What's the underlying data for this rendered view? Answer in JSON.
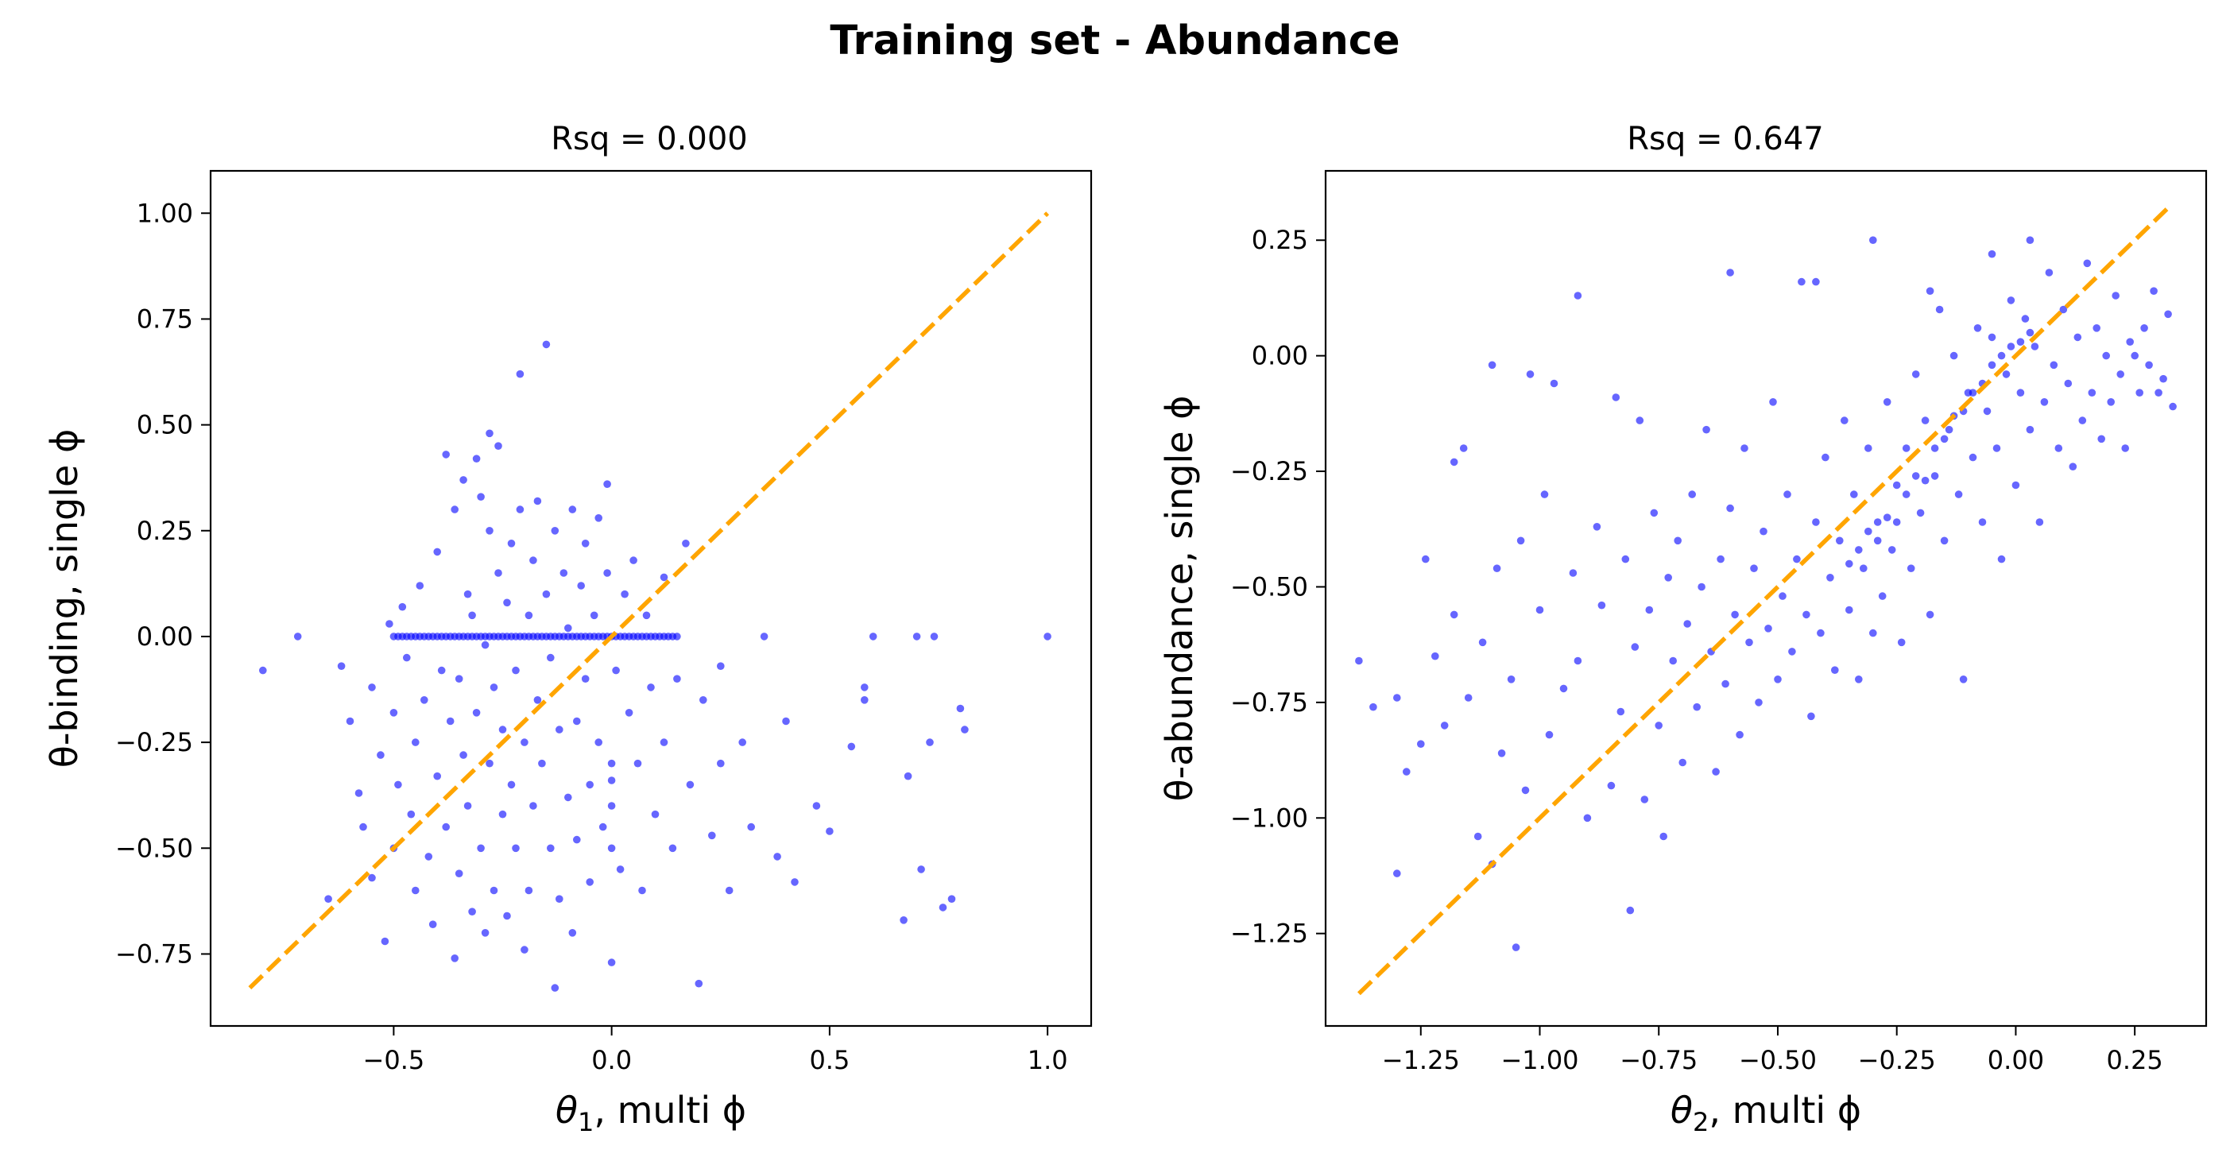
{
  "figure": {
    "title": "Training set - Abundance"
  },
  "colors": {
    "points": "#0000ff",
    "diagonal": "#ffa500",
    "axes": "#000000"
  },
  "chart_data": [
    {
      "type": "scatter",
      "title": "Rsq = 0.000",
      "xlabel_prefix": "θ",
      "xlabel_sub": "1",
      "xlabel_suffix": ", multi ϕ",
      "ylabel": "θ-binding, single ϕ",
      "xlim": [
        -0.92,
        1.1
      ],
      "ylim": [
        -0.92,
        1.1
      ],
      "xticks": [
        -0.5,
        0.0,
        0.5,
        1.0
      ],
      "xtick_labels": [
        "−0.5",
        "0.0",
        "0.5",
        "1.0"
      ],
      "yticks": [
        -0.75,
        -0.5,
        -0.25,
        0.0,
        0.25,
        0.5,
        0.75,
        1.0
      ],
      "ytick_labels": [
        "−0.75",
        "−0.50",
        "−0.25",
        "0.00",
        "0.25",
        "0.50",
        "0.75",
        "1.00"
      ],
      "diagonal": [
        [
          -0.83,
          -0.83
        ],
        [
          1.0,
          1.0
        ]
      ],
      "grid": false,
      "points": [
        [
          -0.8,
          -0.08
        ],
        [
          -0.72,
          0.0
        ],
        [
          -0.65,
          -0.62
        ],
        [
          -0.62,
          -0.07
        ],
        [
          -0.6,
          -0.2
        ],
        [
          -0.58,
          -0.37
        ],
        [
          -0.57,
          -0.45
        ],
        [
          -0.55,
          -0.12
        ],
        [
          -0.55,
          -0.57
        ],
        [
          -0.53,
          -0.28
        ],
        [
          -0.52,
          -0.72
        ],
        [
          -0.51,
          0.03
        ],
        [
          -0.5,
          -0.5
        ],
        [
          -0.5,
          -0.18
        ],
        [
          -0.49,
          -0.35
        ],
        [
          -0.48,
          0.07
        ],
        [
          -0.47,
          -0.05
        ],
        [
          -0.46,
          -0.42
        ],
        [
          -0.45,
          -0.6
        ],
        [
          -0.45,
          -0.25
        ],
        [
          -0.44,
          0.12
        ],
        [
          -0.43,
          -0.15
        ],
        [
          -0.42,
          -0.52
        ],
        [
          -0.41,
          -0.68
        ],
        [
          -0.4,
          -0.33
        ],
        [
          -0.4,
          0.2
        ],
        [
          -0.39,
          -0.08
        ],
        [
          -0.38,
          -0.45
        ],
        [
          -0.38,
          0.43
        ],
        [
          -0.37,
          -0.2
        ],
        [
          -0.36,
          -0.76
        ],
        [
          -0.36,
          0.3
        ],
        [
          -0.35,
          -0.1
        ],
        [
          -0.35,
          -0.56
        ],
        [
          -0.34,
          0.37
        ],
        [
          -0.34,
          -0.28
        ],
        [
          -0.33,
          0.1
        ],
        [
          -0.33,
          -0.4
        ],
        [
          -0.32,
          -0.65
        ],
        [
          -0.32,
          0.05
        ],
        [
          -0.31,
          -0.18
        ],
        [
          -0.31,
          0.42
        ],
        [
          -0.3,
          -0.5
        ],
        [
          -0.3,
          0.33
        ],
        [
          -0.29,
          -0.02
        ],
        [
          -0.29,
          -0.7
        ],
        [
          -0.28,
          0.25
        ],
        [
          -0.28,
          -0.3
        ],
        [
          -0.28,
          0.48
        ],
        [
          -0.27,
          -0.12
        ],
        [
          -0.27,
          -0.6
        ],
        [
          -0.26,
          0.15
        ],
        [
          -0.26,
          0.45
        ],
        [
          -0.25,
          -0.42
        ],
        [
          -0.25,
          -0.22
        ],
        [
          -0.24,
          0.08
        ],
        [
          -0.24,
          -0.66
        ],
        [
          -0.23,
          -0.35
        ],
        [
          -0.23,
          0.22
        ],
        [
          -0.22,
          -0.08
        ],
        [
          -0.22,
          -0.5
        ],
        [
          -0.21,
          0.3
        ],
        [
          -0.21,
          0.62
        ],
        [
          -0.2,
          -0.25
        ],
        [
          -0.2,
          -0.74
        ],
        [
          -0.19,
          0.05
        ],
        [
          -0.19,
          -0.6
        ],
        [
          -0.18,
          0.18
        ],
        [
          -0.18,
          -0.4
        ],
        [
          -0.17,
          0.32
        ],
        [
          -0.17,
          -0.15
        ],
        [
          -0.16,
          -0.3
        ],
        [
          -0.15,
          0.1
        ],
        [
          -0.15,
          0.69
        ],
        [
          -0.14,
          -0.5
        ],
        [
          -0.14,
          -0.05
        ],
        [
          -0.13,
          0.25
        ],
        [
          -0.13,
          -0.83
        ],
        [
          -0.12,
          -0.22
        ],
        [
          -0.12,
          -0.62
        ],
        [
          -0.11,
          0.15
        ],
        [
          -0.1,
          -0.38
        ],
        [
          -0.1,
          0.02
        ],
        [
          -0.09,
          -0.7
        ],
        [
          -0.09,
          0.3
        ],
        [
          -0.08,
          -0.2
        ],
        [
          -0.08,
          -0.48
        ],
        [
          -0.07,
          0.12
        ],
        [
          -0.06,
          -0.1
        ],
        [
          -0.06,
          0.22
        ],
        [
          -0.05,
          -0.35
        ],
        [
          -0.05,
          -0.58
        ],
        [
          -0.04,
          0.05
        ],
        [
          -0.03,
          0.28
        ],
        [
          -0.03,
          -0.25
        ],
        [
          -0.02,
          -0.45
        ],
        [
          -0.01,
          0.36
        ],
        [
          -0.01,
          0.15
        ],
        [
          0.0,
          -0.3
        ],
        [
          0.0,
          -0.34
        ],
        [
          0.0,
          -0.4
        ],
        [
          0.0,
          -0.5
        ],
        [
          0.0,
          -0.77
        ],
        [
          0.01,
          -0.08
        ],
        [
          0.02,
          -0.55
        ],
        [
          0.03,
          0.1
        ],
        [
          0.04,
          -0.18
        ],
        [
          0.05,
          0.18
        ],
        [
          0.06,
          -0.3
        ],
        [
          0.07,
          -0.6
        ],
        [
          0.08,
          0.05
        ],
        [
          0.09,
          -0.12
        ],
        [
          0.1,
          -0.42
        ],
        [
          0.12,
          0.14
        ],
        [
          0.12,
          -0.25
        ],
        [
          0.14,
          -0.5
        ],
        [
          0.15,
          -0.1
        ],
        [
          0.17,
          0.22
        ],
        [
          0.18,
          -0.35
        ],
        [
          0.2,
          -0.82
        ],
        [
          0.21,
          -0.15
        ],
        [
          0.23,
          -0.47
        ],
        [
          0.25,
          -0.07
        ],
        [
          0.25,
          -0.3
        ],
        [
          0.27,
          -0.6
        ],
        [
          0.3,
          -0.25
        ],
        [
          0.32,
          -0.45
        ],
        [
          0.35,
          0.0
        ],
        [
          0.38,
          -0.52
        ],
        [
          0.4,
          -0.2
        ],
        [
          0.42,
          -0.58
        ],
        [
          0.47,
          -0.4
        ],
        [
          0.5,
          -0.46
        ],
        [
          0.55,
          -0.26
        ],
        [
          0.58,
          -0.12
        ],
        [
          0.58,
          -0.15
        ],
        [
          0.6,
          0.0
        ],
        [
          0.67,
          -0.67
        ],
        [
          0.68,
          -0.33
        ],
        [
          0.7,
          0.0
        ],
        [
          0.71,
          -0.55
        ],
        [
          0.73,
          -0.25
        ],
        [
          0.74,
          0.0
        ],
        [
          0.76,
          -0.64
        ],
        [
          0.78,
          -0.62
        ],
        [
          0.8,
          -0.17
        ],
        [
          0.81,
          -0.22
        ],
        [
          1.0,
          0.0
        ]
      ]
    },
    {
      "type": "scatter",
      "title": "Rsq = 0.647",
      "xlabel_prefix": "θ",
      "xlabel_sub": "2",
      "xlabel_suffix": ", multi ϕ",
      "ylabel": "θ-abundance, single ϕ",
      "xlim": [
        -1.45,
        0.4
      ],
      "ylim": [
        -1.45,
        0.4
      ],
      "xticks": [
        -1.25,
        -1.0,
        -0.75,
        -0.5,
        -0.25,
        0.0,
        0.25
      ],
      "xtick_labels": [
        "−1.25",
        "−1.00",
        "−0.75",
        "−0.50",
        "−0.25",
        "0.00",
        "0.25"
      ],
      "yticks": [
        -1.25,
        -1.0,
        -0.75,
        -0.5,
        -0.25,
        0.0,
        0.25
      ],
      "ytick_labels": [
        "−1.25",
        "−1.00",
        "−0.75",
        "−0.50",
        "−0.25",
        "0.00",
        "0.25"
      ],
      "diagonal": [
        [
          -1.38,
          -1.38
        ],
        [
          0.32,
          0.32
        ]
      ],
      "grid": false,
      "points": [
        [
          -1.38,
          -0.66
        ],
        [
          -1.35,
          -0.76
        ],
        [
          -1.3,
          -0.74
        ],
        [
          -1.3,
          -1.12
        ],
        [
          -1.28,
          -0.9
        ],
        [
          -1.25,
          -0.84
        ],
        [
          -1.24,
          -0.44
        ],
        [
          -1.22,
          -0.65
        ],
        [
          -1.2,
          -0.8
        ],
        [
          -1.18,
          -0.23
        ],
        [
          -1.18,
          -0.56
        ],
        [
          -1.16,
          -0.2
        ],
        [
          -1.15,
          -0.74
        ],
        [
          -1.13,
          -1.04
        ],
        [
          -1.12,
          -0.62
        ],
        [
          -1.1,
          -1.1
        ],
        [
          -1.09,
          -0.46
        ],
        [
          -1.08,
          -0.86
        ],
        [
          -1.06,
          -0.7
        ],
        [
          -1.05,
          -1.28
        ],
        [
          -1.04,
          -0.4
        ],
        [
          -1.03,
          -0.94
        ],
        [
          -1.02,
          -0.04
        ],
        [
          -1.0,
          -0.55
        ],
        [
          -0.99,
          -0.3
        ],
        [
          -0.98,
          -0.82
        ],
        [
          -0.97,
          -0.06
        ],
        [
          -0.95,
          -0.72
        ],
        [
          -0.93,
          -0.47
        ],
        [
          -0.92,
          -0.66
        ],
        [
          -0.9,
          -1.0
        ],
        [
          -0.88,
          -0.37
        ],
        [
          -0.87,
          -0.54
        ],
        [
          -0.85,
          -0.93
        ],
        [
          -0.84,
          -0.09
        ],
        [
          -0.83,
          -0.77
        ],
        [
          -0.82,
          -0.44
        ],
        [
          -0.81,
          -1.2
        ],
        [
          -0.8,
          -0.63
        ],
        [
          -0.79,
          -0.14
        ],
        [
          -0.78,
          -0.96
        ],
        [
          -0.77,
          -0.55
        ],
        [
          -0.76,
          -0.34
        ],
        [
          -0.75,
          -0.8
        ],
        [
          -0.74,
          -1.04
        ],
        [
          -0.73,
          -0.48
        ],
        [
          -0.72,
          -0.66
        ],
        [
          -0.71,
          -0.4
        ],
        [
          -0.7,
          -0.88
        ],
        [
          -0.69,
          -0.58
        ],
        [
          -0.68,
          -0.3
        ],
        [
          -0.67,
          -0.76
        ],
        [
          -0.66,
          -0.5
        ],
        [
          -0.65,
          -0.16
        ],
        [
          -0.64,
          -0.64
        ],
        [
          -0.63,
          -0.9
        ],
        [
          -0.62,
          -0.44
        ],
        [
          -0.61,
          -0.71
        ],
        [
          -0.6,
          -0.33
        ],
        [
          -0.59,
          -0.56
        ],
        [
          -0.58,
          -0.82
        ],
        [
          -0.57,
          -0.2
        ],
        [
          -0.56,
          -0.62
        ],
        [
          -0.55,
          -0.46
        ],
        [
          -0.54,
          -0.75
        ],
        [
          -0.53,
          -0.38
        ],
        [
          -0.52,
          -0.59
        ],
        [
          -0.51,
          -0.1
        ],
        [
          -0.5,
          -0.7
        ],
        [
          -0.49,
          -0.52
        ],
        [
          -0.48,
          -0.3
        ],
        [
          -0.47,
          -0.64
        ],
        [
          -0.46,
          -0.44
        ],
        [
          -0.45,
          0.16
        ],
        [
          -0.44,
          -0.56
        ],
        [
          -0.43,
          -0.78
        ],
        [
          -0.42,
          -0.36
        ],
        [
          -0.41,
          -0.6
        ],
        [
          -0.4,
          -0.22
        ],
        [
          -0.39,
          -0.48
        ],
        [
          -0.38,
          -0.68
        ],
        [
          -0.37,
          -0.4
        ],
        [
          -0.36,
          -0.14
        ],
        [
          -0.35,
          -0.55
        ],
        [
          -0.34,
          -0.3
        ],
        [
          -0.33,
          -0.7
        ],
        [
          -0.32,
          -0.46
        ],
        [
          -0.31,
          -0.2
        ],
        [
          -0.3,
          -0.6
        ],
        [
          -0.29,
          -0.36
        ],
        [
          -0.28,
          -0.52
        ],
        [
          -0.27,
          -0.1
        ],
        [
          -0.26,
          -0.42
        ],
        [
          -0.25,
          -0.28
        ],
        [
          -0.24,
          -0.62
        ],
        [
          -0.23,
          -0.2
        ],
        [
          -0.22,
          -0.46
        ],
        [
          -0.21,
          -0.04
        ],
        [
          -0.2,
          -0.34
        ],
        [
          -0.19,
          -0.14
        ],
        [
          -0.18,
          -0.56
        ],
        [
          -0.17,
          -0.26
        ],
        [
          -0.16,
          0.1
        ],
        [
          -0.15,
          -0.4
        ],
        [
          -0.14,
          -0.16
        ],
        [
          -0.13,
          0.0
        ],
        [
          -0.12,
          -0.3
        ],
        [
          -0.11,
          -0.7
        ],
        [
          -0.1,
          -0.08
        ],
        [
          -0.09,
          -0.22
        ],
        [
          -0.08,
          0.06
        ],
        [
          -0.07,
          -0.36
        ],
        [
          -0.06,
          -0.12
        ],
        [
          -0.05,
          0.04
        ],
        [
          -0.04,
          -0.2
        ],
        [
          -0.03,
          -0.44
        ],
        [
          -0.02,
          -0.04
        ],
        [
          -0.01,
          0.12
        ],
        [
          0.0,
          -0.28
        ],
        [
          0.01,
          -0.08
        ],
        [
          0.02,
          0.08
        ],
        [
          0.03,
          -0.16
        ],
        [
          0.04,
          0.02
        ],
        [
          0.05,
          -0.36
        ],
        [
          0.06,
          -0.1
        ],
        [
          0.07,
          0.18
        ],
        [
          0.08,
          -0.02
        ],
        [
          0.09,
          -0.2
        ],
        [
          0.1,
          0.1
        ],
        [
          0.11,
          -0.06
        ],
        [
          0.12,
          -0.24
        ],
        [
          0.13,
          0.04
        ],
        [
          0.14,
          -0.14
        ],
        [
          0.15,
          0.2
        ],
        [
          0.16,
          -0.08
        ],
        [
          0.17,
          0.06
        ],
        [
          0.18,
          -0.18
        ],
        [
          0.19,
          0.0
        ],
        [
          0.2,
          -0.1
        ],
        [
          0.21,
          0.13
        ],
        [
          0.22,
          -0.04
        ],
        [
          0.23,
          -0.2
        ],
        [
          0.24,
          0.03
        ],
        [
          0.25,
          0.0
        ],
        [
          0.26,
          -0.08
        ],
        [
          0.27,
          0.06
        ],
        [
          0.28,
          -0.02
        ],
        [
          0.29,
          0.14
        ],
        [
          0.3,
          -0.08
        ],
        [
          0.31,
          -0.05
        ],
        [
          0.32,
          0.09
        ],
        [
          0.33,
          -0.11
        ],
        [
          -0.3,
          0.25
        ],
        [
          0.03,
          0.25
        ],
        [
          -0.05,
          0.22
        ],
        [
          -0.18,
          0.14
        ],
        [
          -0.42,
          0.16
        ],
        [
          -0.6,
          0.18
        ],
        [
          -0.92,
          0.13
        ],
        [
          -1.1,
          -0.02
        ],
        [
          -0.35,
          -0.45
        ],
        [
          -0.33,
          -0.42
        ],
        [
          -0.31,
          -0.38
        ],
        [
          -0.29,
          -0.4
        ],
        [
          -0.27,
          -0.35
        ],
        [
          -0.25,
          -0.36
        ],
        [
          -0.23,
          -0.3
        ],
        [
          -0.21,
          -0.26
        ],
        [
          -0.19,
          -0.27
        ],
        [
          -0.17,
          -0.2
        ],
        [
          -0.15,
          -0.18
        ],
        [
          -0.13,
          -0.13
        ],
        [
          -0.11,
          -0.12
        ],
        [
          -0.09,
          -0.08
        ],
        [
          -0.07,
          -0.06
        ],
        [
          -0.05,
          -0.02
        ],
        [
          -0.03,
          0.0
        ],
        [
          -0.01,
          0.02
        ],
        [
          0.01,
          0.03
        ],
        [
          0.03,
          0.05
        ]
      ]
    }
  ]
}
